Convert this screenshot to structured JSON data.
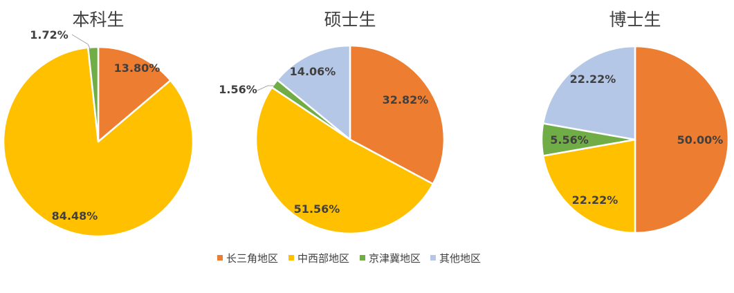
{
  "chart_data": [
    {
      "type": "pie",
      "title": "本科生",
      "slices": [
        {
          "category": "长三角地区",
          "value": 13.8,
          "label": "13.80%"
        },
        {
          "category": "中西部地区",
          "value": 84.48,
          "label": "84.48%"
        },
        {
          "category": "京津冀地区",
          "value": 1.72,
          "label": "1.72%"
        }
      ]
    },
    {
      "type": "pie",
      "title": "硕士生",
      "slices": [
        {
          "category": "长三角地区",
          "value": 32.82,
          "label": "32.82%"
        },
        {
          "category": "中西部地区",
          "value": 51.56,
          "label": "51.56%"
        },
        {
          "category": "京津冀地区",
          "value": 1.56,
          "label": "1.56%"
        },
        {
          "category": "其他地区",
          "value": 14.06,
          "label": "14.06%"
        }
      ]
    },
    {
      "type": "pie",
      "title": "博士生",
      "slices": [
        {
          "category": "长三角地区",
          "value": 50.0,
          "label": "50.00%"
        },
        {
          "category": "中西部地区",
          "value": 22.22,
          "label": "22.22%"
        },
        {
          "category": "京津冀地区",
          "value": 5.56,
          "label": "5.56%"
        },
        {
          "category": "其他地区",
          "value": 22.22,
          "label": "22.22%"
        }
      ]
    }
  ],
  "legend": {
    "placement": "bottom",
    "items": [
      {
        "label": "长三角地区",
        "color": "#ED7D31"
      },
      {
        "label": "中西部地区",
        "color": "#FFC000"
      },
      {
        "label": "京津冀地区",
        "color": "#70AD47"
      },
      {
        "label": "其他地区",
        "color": "#B4C7E7"
      }
    ]
  }
}
